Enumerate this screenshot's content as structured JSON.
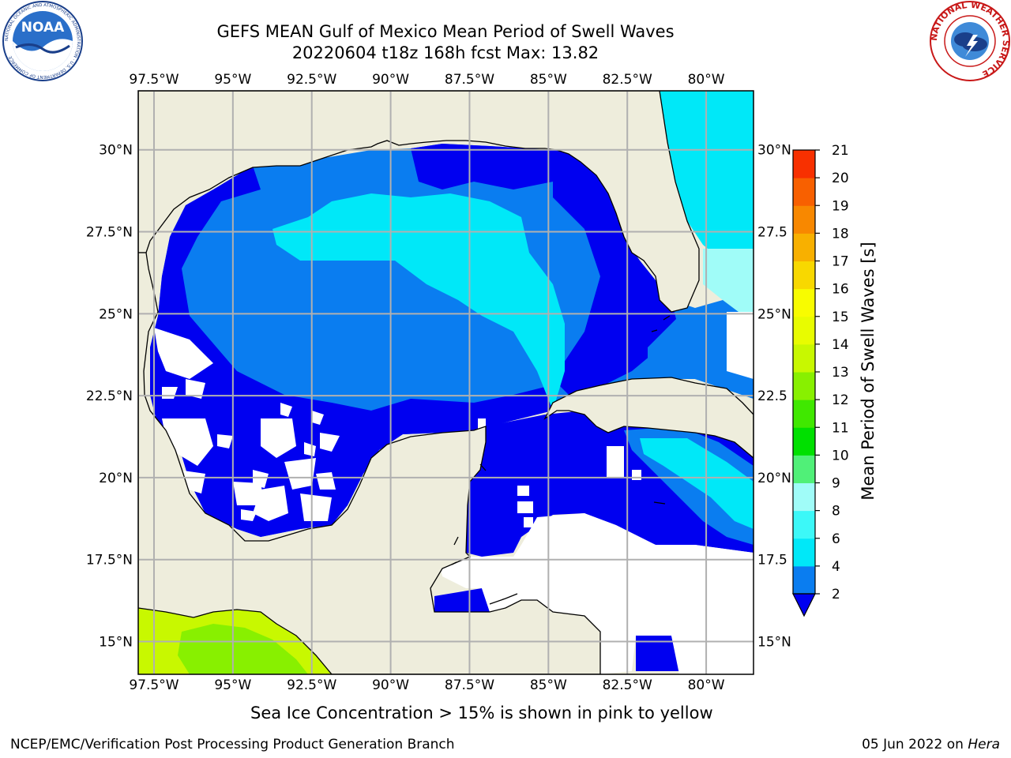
{
  "title": {
    "line1": "GEFS MEAN Gulf of Mexico Mean Period of Swell Waves",
    "line2": "20220604 t18z 168h fcst   Max: 13.82"
  },
  "logos": {
    "left": "NOAA",
    "left_ring": "NATIONAL OCEANIC AND ATMOSPHERIC ADMINISTRATION · U.S. DEPARTMENT OF COMMERCE",
    "right_ring": "NATIONAL WEATHER SERVICE"
  },
  "map": {
    "lon_range": [
      -98.0,
      -78.5
    ],
    "lat_range": [
      14.0,
      31.8
    ],
    "lon_ticks": [
      {
        "value": -97.5,
        "label": "97.5°W"
      },
      {
        "value": -95.0,
        "label": "95°W"
      },
      {
        "value": -92.5,
        "label": "92.5°W"
      },
      {
        "value": -90.0,
        "label": "90°W"
      },
      {
        "value": -87.5,
        "label": "87.5°W"
      },
      {
        "value": -85.0,
        "label": "85°W"
      },
      {
        "value": -82.5,
        "label": "82.5°W"
      },
      {
        "value": -80.0,
        "label": "80°W"
      }
    ],
    "lat_ticks_left": [
      {
        "value": 30.0,
        "label": "30°N"
      },
      {
        "value": 27.5,
        "label": "27.5°N"
      },
      {
        "value": 25.0,
        "label": "25°N"
      },
      {
        "value": 22.5,
        "label": "22.5°N"
      },
      {
        "value": 20.0,
        "label": "20°N"
      },
      {
        "value": 17.5,
        "label": "17.5°N"
      },
      {
        "value": 15.0,
        "label": "15°N"
      }
    ],
    "lat_ticks_right": [
      {
        "value": 30.0,
        "label": "30°N"
      },
      {
        "value": 27.5,
        "label": "27.5"
      },
      {
        "value": 25.0,
        "label": "25°N"
      },
      {
        "value": 22.5,
        "label": "22.5"
      },
      {
        "value": 20.0,
        "label": "20°N"
      },
      {
        "value": 17.5,
        "label": "17.5"
      },
      {
        "value": 15.0,
        "label": "15°N"
      }
    ],
    "colors": {
      "land": "#eeeddc",
      "grid": "#b0b0b0",
      "coast": "#000000",
      "nodata": "#ffffff"
    }
  },
  "colorbar": {
    "label": "Mean Period of Swell Waves [s]",
    "levels": [
      "2",
      "4",
      "6",
      "8",
      "9",
      "10",
      "11",
      "12",
      "13",
      "14",
      "15",
      "16",
      "17",
      "18",
      "19",
      "20",
      "21"
    ],
    "colors": [
      "#0a7df0",
      "#00e8f8",
      "#3cf8f8",
      "#a0fcf8",
      "#50f078",
      "#00e000",
      "#40e800",
      "#88f000",
      "#c8f800",
      "#e8fc00",
      "#f8fc00",
      "#f8d800",
      "#f8b000",
      "#f88800",
      "#f86000",
      "#f83000",
      "#f80000"
    ],
    "extend_color": "#0000f0"
  },
  "annotation": "Sea Ice Concentration > 15% is shown in pink to yellow",
  "footer": {
    "left": "NCEP/EMC/Verification Post Processing Product Generation Branch",
    "date": "05 Jun 2022 on ",
    "machine": "Hera"
  }
}
